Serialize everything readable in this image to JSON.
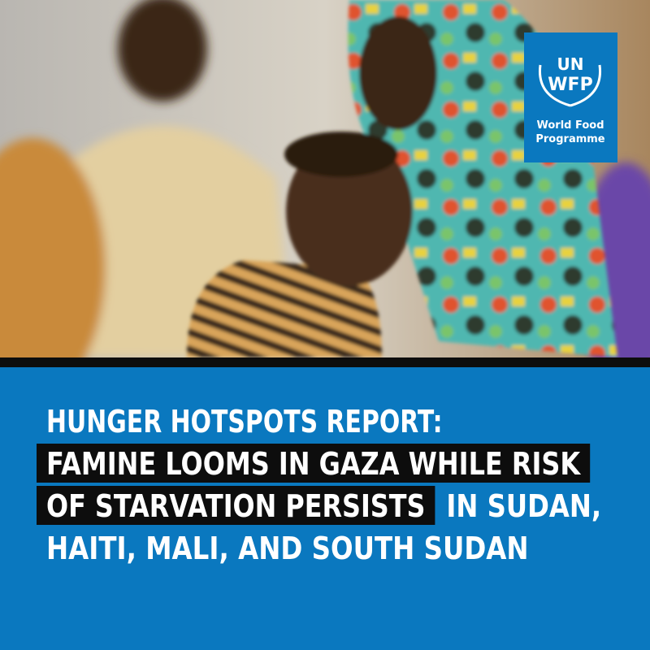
{
  "logo": {
    "top": "UN",
    "mid": "WFP",
    "name_lines": [
      "World Food",
      "Programme"
    ]
  },
  "headline": [
    [
      {
        "text": "HUNGER HOTSPOTS REPORT:",
        "highlight": false
      }
    ],
    [
      {
        "text": "FAMINE LOOMS IN GAZA WHILE RISK",
        "highlight": true
      }
    ],
    [
      {
        "text": "OF STARVATION PERSISTS",
        "highlight": true
      },
      {
        "text": "IN SUDAN,",
        "highlight": false
      }
    ],
    [
      {
        "text": "HAITI, MALI, AND SOUTH SUDAN",
        "highlight": false
      }
    ]
  ]
}
